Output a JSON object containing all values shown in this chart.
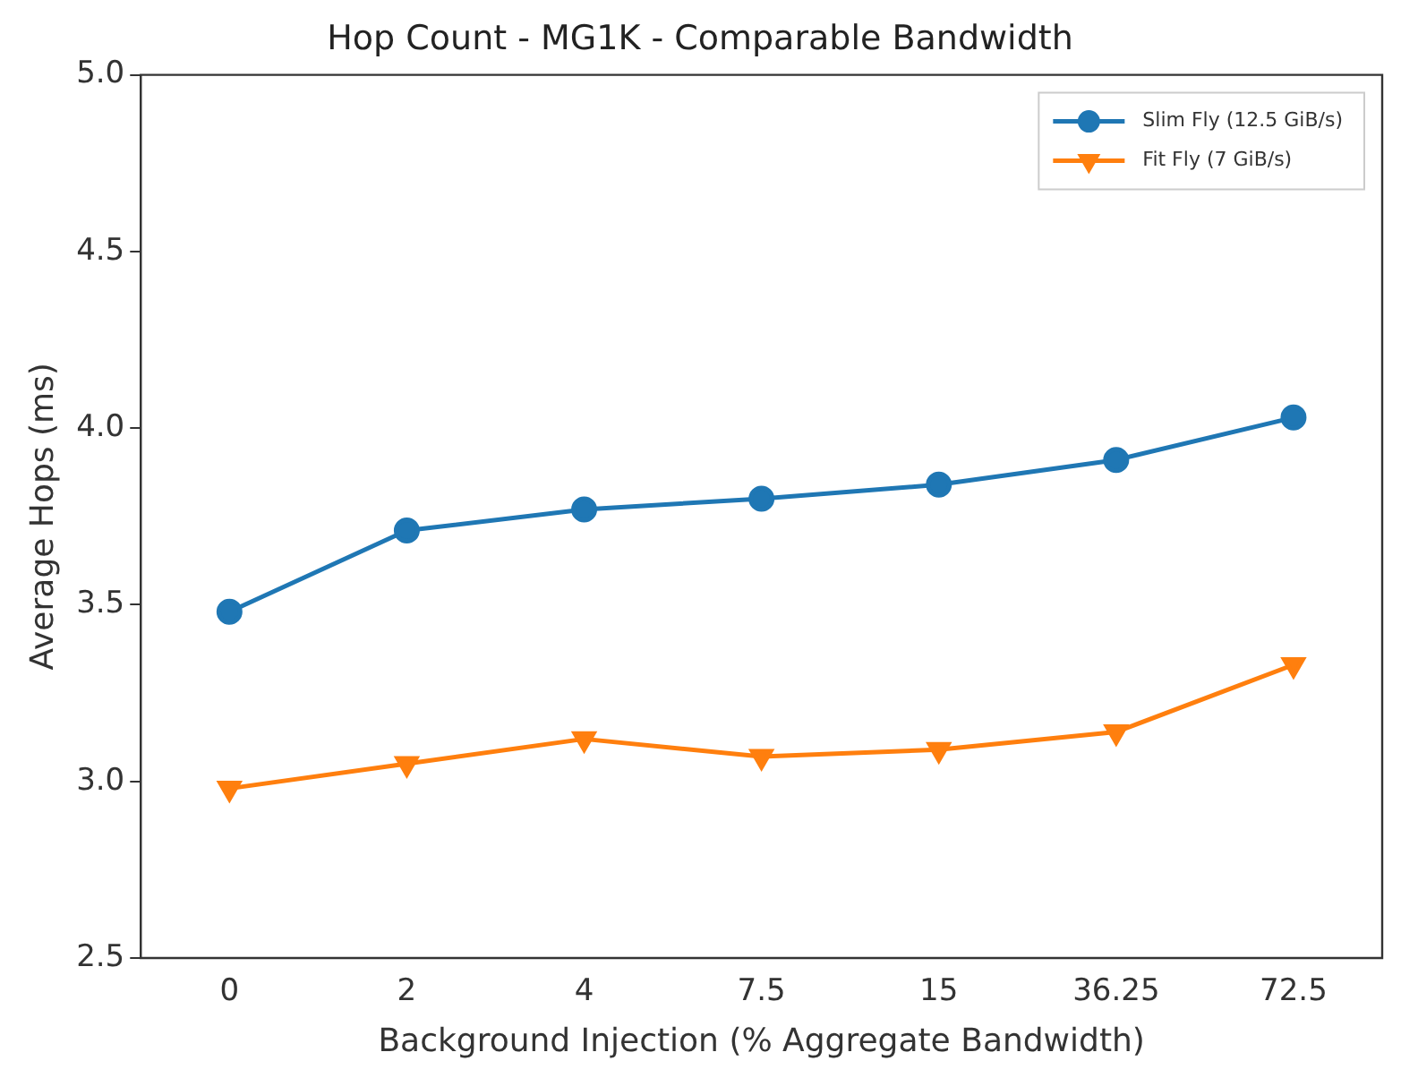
{
  "chart_data": {
    "type": "line",
    "title": "Hop Count - MG1K - Comparable Bandwidth",
    "xlabel": "Background Injection (% Aggregate Bandwidth)",
    "ylabel": "Average Hops (ms)",
    "categories": [
      "0",
      "2",
      "4",
      "7.5",
      "15",
      "36.25",
      "72.5"
    ],
    "series": [
      {
        "name": "Slim Fly (12.5 GiB/s)",
        "color": "#1f77b4",
        "marker": "circle",
        "values": [
          3.48,
          3.71,
          3.77,
          3.8,
          3.84,
          3.91,
          4.03
        ]
      },
      {
        "name": "Fit Fly (7 GiB/s)",
        "color": "#ff7f0e",
        "marker": "triangle",
        "values": [
          2.98,
          3.05,
          3.12,
          3.07,
          3.09,
          3.14,
          3.33
        ]
      }
    ],
    "ylim": [
      2.5,
      5.0
    ],
    "yticks": [
      {
        "value": 2.5,
        "label": "2.5"
      },
      {
        "value": 3.0,
        "label": "3.0"
      },
      {
        "value": 3.5,
        "label": "3.5"
      },
      {
        "value": 4.0,
        "label": "4.0"
      },
      {
        "value": 4.5,
        "label": "4.5"
      },
      {
        "value": 5.0,
        "label": "5.0"
      }
    ],
    "grid": false,
    "legend": "top right",
    "line_style": "solid"
  }
}
